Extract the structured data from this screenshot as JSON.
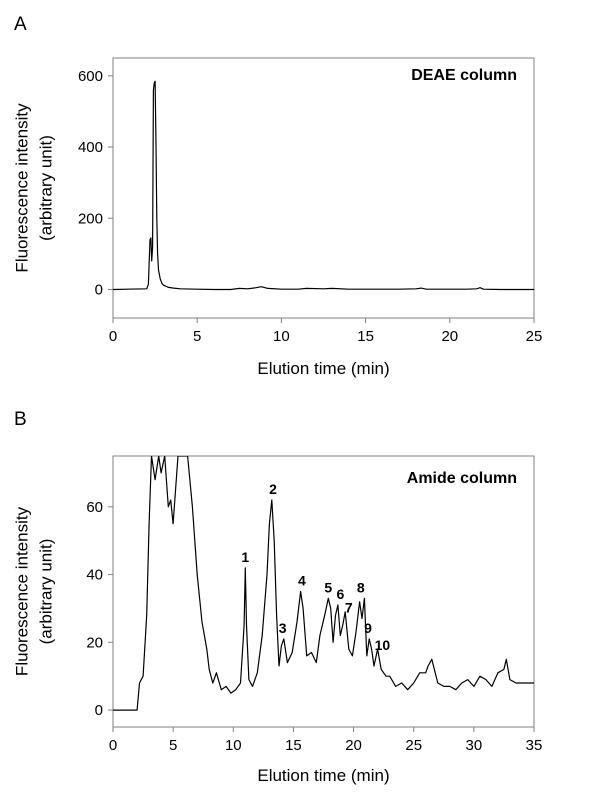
{
  "chart_data": [
    {
      "panel": "A",
      "type": "line",
      "title": "DEAE column",
      "xlabel": "Elution time (min)",
      "ylabel": [
        "Fluorescence intensity",
        "(arbitrary unit)"
      ],
      "xlim": [
        0,
        25
      ],
      "ylim": [
        -80,
        650
      ],
      "xticks": [
        0,
        5,
        10,
        15,
        20,
        25
      ],
      "yticks": [
        0,
        200,
        400,
        600
      ],
      "legend": "none",
      "grid": false,
      "series": [
        {
          "x": [
            0,
            2.0,
            2.1,
            2.2,
            2.25,
            2.3,
            2.35,
            2.4,
            2.45,
            2.5,
            2.55,
            2.6,
            2.65,
            2.7,
            2.8,
            2.9,
            3.0,
            3.3,
            3.6,
            4.0,
            5.0,
            6.0,
            7.0,
            7.5,
            8.0,
            8.5,
            8.8,
            9.2,
            10.0,
            11.0,
            11.5,
            12.5,
            13.0,
            14.0,
            16.0,
            17.0,
            18.0,
            18.3,
            18.6,
            19.5,
            21.0,
            21.6,
            21.8,
            22.0,
            23.0,
            25.0
          ],
          "y": [
            0,
            2,
            15,
            140,
            145,
            80,
            120,
            560,
            580,
            585,
            430,
            200,
            100,
            55,
            30,
            18,
            12,
            6,
            4,
            2,
            1,
            0,
            0,
            3,
            2,
            5,
            8,
            3,
            1,
            1,
            3,
            2,
            3,
            1,
            1,
            1,
            2,
            4,
            1,
            1,
            1,
            2,
            5,
            1,
            0,
            0
          ]
        }
      ]
    },
    {
      "panel": "B",
      "type": "line",
      "title": "Amide column",
      "xlabel": "Elution time (min)",
      "ylabel": [
        "Fluorescence intensity",
        "(arbitrary unit)"
      ],
      "xlim": [
        0,
        35
      ],
      "ylim": [
        -5,
        75
      ],
      "xticks": [
        0,
        5,
        10,
        15,
        20,
        25,
        30,
        35
      ],
      "yticks": [
        0,
        20,
        40,
        60
      ],
      "legend": "none",
      "grid": false,
      "series": [
        {
          "x": [
            0,
            2.0,
            2.2,
            2.5,
            2.8,
            3.0,
            3.2,
            3.5,
            3.8,
            4.0,
            4.3,
            4.6,
            4.8,
            5.0,
            5.4,
            5.8,
            6.2,
            6.6,
            7.0,
            7.4,
            7.8,
            8.0,
            8.3,
            8.6,
            9.0,
            9.4,
            9.8,
            10.2,
            10.6,
            10.9,
            11.0,
            11.1,
            11.3,
            11.6,
            12.0,
            12.4,
            12.8,
            13.0,
            13.2,
            13.4,
            13.6,
            13.8,
            14.0,
            14.2,
            14.5,
            14.9,
            15.3,
            15.6,
            15.8,
            16.1,
            16.5,
            16.9,
            17.2,
            17.6,
            17.9,
            18.1,
            18.3,
            18.5,
            18.7,
            18.9,
            19.1,
            19.3,
            19.6,
            19.9,
            20.2,
            20.5,
            20.7,
            20.9,
            21.1,
            21.3,
            21.5,
            21.7,
            22.0,
            22.3,
            22.7,
            23.0,
            23.5,
            24.0,
            24.5,
            25.0,
            25.5,
            26.0,
            26.2,
            26.5,
            27.0,
            27.5,
            28.0,
            28.5,
            29.0,
            29.5,
            30.0,
            30.5,
            31.0,
            31.5,
            32.0,
            32.5,
            32.7,
            33.0,
            33.5,
            34.0,
            35.0
          ],
          "y": [
            0,
            0,
            8,
            10,
            28,
            55,
            75,
            68,
            75,
            70,
            75,
            60,
            62,
            55,
            75,
            75,
            75,
            60,
            40,
            26,
            18,
            12,
            8,
            11,
            6,
            7,
            5,
            6,
            8,
            25,
            42,
            25,
            9,
            7,
            11,
            22,
            40,
            55,
            62,
            50,
            28,
            13,
            19,
            21,
            14,
            17,
            26,
            35,
            30,
            16,
            17,
            14,
            22,
            28,
            33,
            30,
            20,
            28,
            31,
            22,
            25,
            29,
            18,
            16,
            23,
            32,
            27,
            33,
            16,
            21,
            18,
            13,
            18,
            12,
            10,
            10,
            7,
            8,
            6,
            8,
            11,
            11,
            13,
            15,
            8,
            7,
            7,
            6,
            8,
            9,
            7,
            10,
            9,
            7,
            11,
            12,
            15,
            9,
            8,
            8,
            8
          ]
        }
      ],
      "peak_labels": [
        {
          "label": "1",
          "x": 11.0,
          "y": 42
        },
        {
          "label": "2",
          "x": 13.3,
          "y": 62
        },
        {
          "label": "3",
          "x": 14.1,
          "y": 21
        },
        {
          "label": "4",
          "x": 15.7,
          "y": 35
        },
        {
          "label": "5",
          "x": 17.9,
          "y": 33
        },
        {
          "label": "6",
          "x": 18.9,
          "y": 31
        },
        {
          "label": "7",
          "x": 19.6,
          "y": 27
        },
        {
          "label": "8",
          "x": 20.6,
          "y": 33
        },
        {
          "label": "9",
          "x": 21.2,
          "y": 21
        },
        {
          "label": "10",
          "x": 22.4,
          "y": 16
        }
      ]
    }
  ]
}
